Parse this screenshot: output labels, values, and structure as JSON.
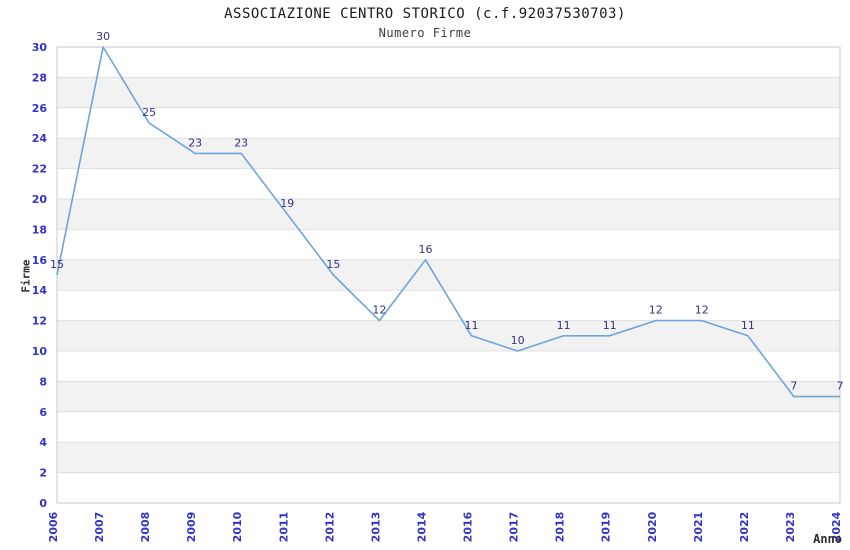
{
  "chart_data": {
    "type": "line",
    "title": "ASSOCIAZIONE CENTRO STORICO (c.f.92037530703)",
    "subtitle": "Numero Firme",
    "xlabel": "Anno",
    "ylabel": "Firme",
    "categories": [
      "2006",
      "2007",
      "2008",
      "2009",
      "2010",
      "2011",
      "2012",
      "2013",
      "2014",
      "2016",
      "2017",
      "2018",
      "2019",
      "2020",
      "2021",
      "2022",
      "2023",
      "2024"
    ],
    "values": [
      15,
      30,
      25,
      23,
      23,
      19,
      15,
      12,
      16,
      11,
      10,
      11,
      11,
      12,
      12,
      11,
      7,
      7
    ],
    "ylim": [
      0,
      30
    ],
    "ytick_step": 2,
    "grid": "horizontal",
    "background_stripes": true,
    "point_markers": false,
    "legend": "none",
    "colors": {
      "line": "#6fa3dc",
      "data_label": "#333380",
      "tick_label": "#3333cc",
      "axis_title": "#2e2e2e",
      "title": "#1a1a1a",
      "stripe": "#f2f2f2",
      "gridline": "#e0e0e0",
      "plot_border": "#c9c9c9",
      "background": "#ffffff"
    }
  }
}
